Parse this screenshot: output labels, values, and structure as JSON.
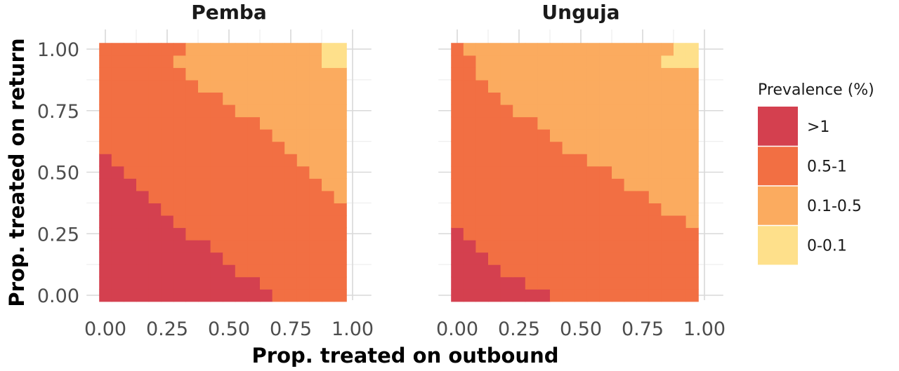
{
  "chart_data": {
    "type": "heatmap",
    "xlabel": "Prop. treated on outbound",
    "ylabel": "Prop. treated on return",
    "xlim": [
      0,
      1
    ],
    "ylim": [
      0,
      1
    ],
    "x_ticks": [
      "0.00",
      "0.25",
      "0.50",
      "0.75",
      "1.00"
    ],
    "y_ticks": [
      "0.00",
      "0.25",
      "0.50",
      "0.75",
      "1.00"
    ],
    "grid": true,
    "grid_step": 0.05,
    "legend": {
      "title": "Prevalence (%)",
      "position": "right",
      "categories": [
        {
          "label": ">1",
          "color": "#d4404f"
        },
        {
          "label": "0.5-1",
          "color": "#f26f43"
        },
        {
          "label": "0.1-0.5",
          "color": "#fbab5f"
        },
        {
          "label": "0-0.1",
          "color": "#fee08b"
        }
      ]
    },
    "panels": [
      {
        "title": "Pemba",
        "rows_from_y0": [
          "00000000000000111111",
          "00000000000001111111",
          "00000000000111111111",
          "00000000001111111111",
          "00000000011111111111",
          "00000001111111111111",
          "00000011111111111111",
          "00000111111111111111",
          "00001111111111111112",
          "00011111111111111122",
          "00111111111111111222",
          "01111111111111112222",
          "11111111111111122222",
          "11111111111111222222",
          "11111111111112222222",
          "11111111111222222222",
          "11111111112222222222",
          "11111111222222222222",
          "11111112222222222222",
          "11111122222222222233",
          "11111112222222222233"
        ]
      },
      {
        "title": "Unguja",
        "rows_from_y0": [
          "00000000111111111111",
          "00000011111111111111",
          "00001111111111111111",
          "00011111111111111111",
          "00111111111111111111",
          "01111111111111111111",
          "11111111111111111112",
          "11111111111111111222",
          "11111111111111112222",
          "11111111111111222222",
          "11111111111112222222",
          "11111111111222222222",
          "11111111122222222222",
          "11111111222222222222",
          "11111112222222222222",
          "11111222222222222222",
          "11112222222222222222",
          "11122222222222222222",
          "11222222222222222222",
          "11222222222222222333",
          "12222222222222222233"
        ]
      }
    ]
  }
}
